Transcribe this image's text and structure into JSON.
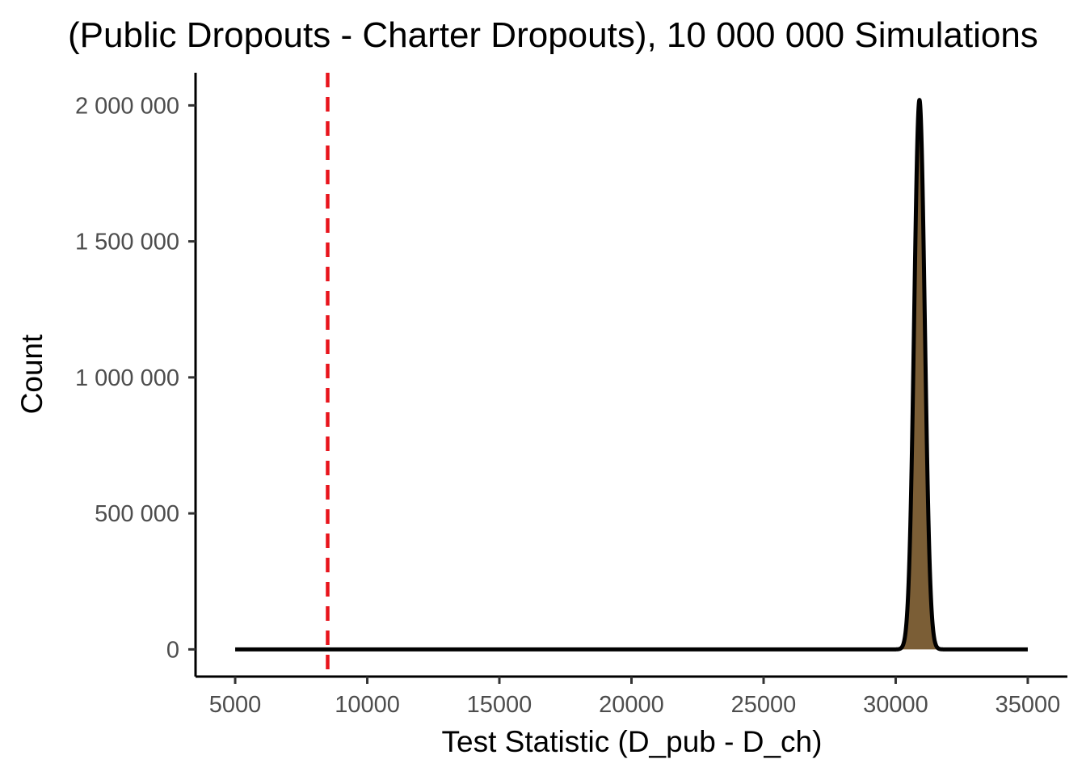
{
  "chart_data": {
    "type": "area",
    "title": "(Public Dropouts - Charter Dropouts), 10 000 000 Simulations",
    "xlabel": "Test Statistic (D_pub - D_ch)",
    "ylabel": "Count",
    "xlim": [
      3500,
      36500
    ],
    "ylim": [
      -100000,
      2120000
    ],
    "x_ticks": [
      5000,
      10000,
      15000,
      20000,
      25000,
      30000,
      35000
    ],
    "x_tick_labels": [
      "5000",
      "10000",
      "15000",
      "20000",
      "25000",
      "30000",
      "35000"
    ],
    "y_ticks": [
      0,
      500000,
      1000000,
      1500000,
      2000000
    ],
    "y_tick_labels": [
      "0",
      "500 000",
      "1 000 000",
      "1 500 000",
      "2 000 000"
    ],
    "grid": false,
    "legend": "none",
    "series": [
      {
        "x_range": [
          5000,
          35000
        ],
        "peak_x": 30900,
        "peak_y": 2020000,
        "spread_sd": 200,
        "fill_color": "#7b5e36",
        "line_color": "#000000"
      }
    ],
    "reference_line": {
      "x": 8500,
      "color": "#e8141c",
      "style": "dashed"
    }
  }
}
